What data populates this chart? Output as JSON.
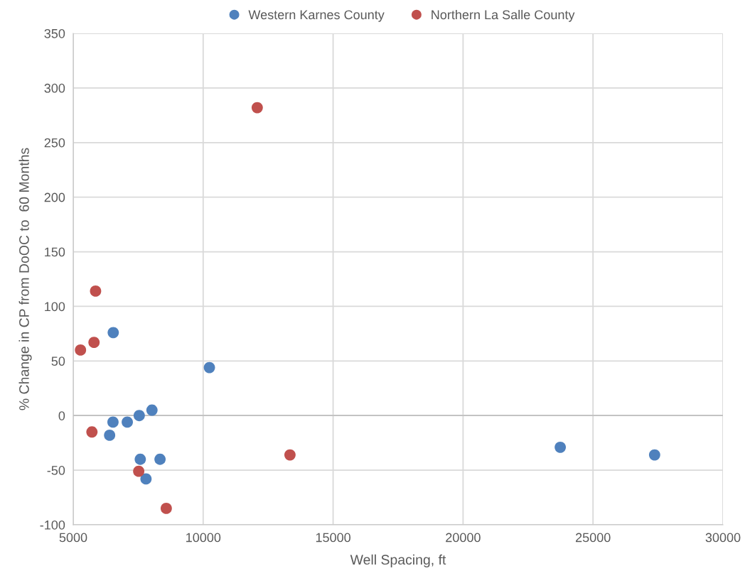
{
  "chart_data": {
    "type": "scatter",
    "xlabel": "Well Spacing, ft",
    "ylabel": "% Change in CP from DoOC to  60 Months",
    "xlim": [
      5000,
      30000
    ],
    "xticks": [
      5000,
      10000,
      15000,
      20000,
      25000,
      30000
    ],
    "ylim": [
      -100,
      350
    ],
    "yticks": [
      -100,
      -50,
      0,
      50,
      100,
      150,
      200,
      250,
      300,
      350
    ],
    "grid": true,
    "legend": "top",
    "marker": "circle",
    "series": [
      {
        "name": "Western Karnes County",
        "color": "#4f81bd",
        "x": [
          6540,
          10240,
          8030,
          7540,
          7080,
          6530,
          6400,
          7580,
          8340,
          7800,
          23740,
          27370
        ],
        "values": [
          76,
          44,
          5,
          0,
          -6,
          -6,
          -18,
          -40,
          -40,
          -58,
          -29,
          -36
        ]
      },
      {
        "name": "Northern La Salle County",
        "color": "#c0504d",
        "x": [
          12080,
          5860,
          5800,
          5280,
          5720,
          7520,
          8580,
          13340
        ],
        "values": [
          282,
          114,
          67,
          60,
          -15,
          -51,
          -85,
          -36
        ]
      }
    ]
  }
}
